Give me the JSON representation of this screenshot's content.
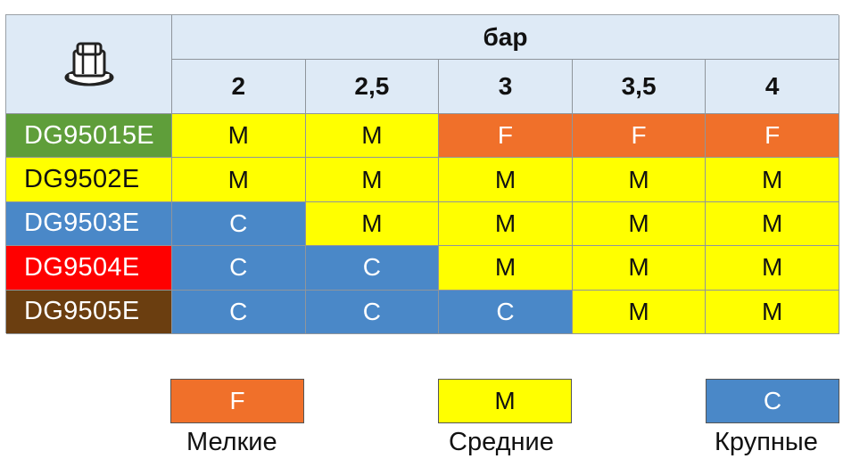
{
  "header": {
    "unit": "бар",
    "icon": "nozzle-icon",
    "pressures": [
      "2",
      "2,5",
      "3",
      "3,5",
      "4"
    ]
  },
  "rows": [
    {
      "name": "DG95015E",
      "color": "#5f9e3a",
      "text_color": "#ffffff",
      "cells": [
        "M",
        "M",
        "F",
        "F",
        "F"
      ]
    },
    {
      "name": "DG9502E",
      "color": "#ffff00",
      "text_color": "#111111",
      "cells": [
        "M",
        "M",
        "M",
        "M",
        "M"
      ]
    },
    {
      "name": "DG9503E",
      "color": "#4a88c8",
      "text_color": "#ffffff",
      "cells": [
        "C",
        "M",
        "M",
        "M",
        "M"
      ]
    },
    {
      "name": "DG9504E",
      "color": "#ff0000",
      "text_color": "#ffffff",
      "cells": [
        "C",
        "C",
        "M",
        "M",
        "M"
      ]
    },
    {
      "name": "DG9505E",
      "color": "#6b3e10",
      "text_color": "#ffffff",
      "cells": [
        "C",
        "C",
        "C",
        "M",
        "M"
      ]
    }
  ],
  "legend": [
    {
      "code": "F",
      "label": "Мелкие"
    },
    {
      "code": "M",
      "label": "Средние"
    },
    {
      "code": "C",
      "label": "Крупные"
    }
  ],
  "colors": {
    "F": "#f0702a",
    "M": "#ffff00",
    "C": "#4a88c8",
    "header_bg": "#deeaf6"
  }
}
